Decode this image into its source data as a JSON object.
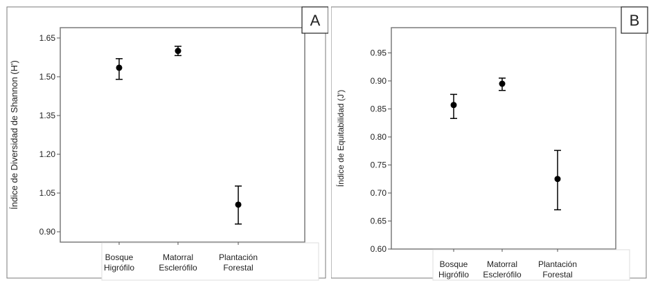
{
  "chart_data": [
    {
      "type": "scatter",
      "panel_label": "A",
      "title": "",
      "ylabel": "Índice de Diversidad de Shannon (H')",
      "xlabel": "",
      "categories": [
        [
          "Bosque",
          "Higrófilo"
        ],
        [
          "Matorral",
          "Esclerófilo"
        ],
        [
          "Plantación",
          "Forestal"
        ]
      ],
      "values": [
        1.535,
        1.6,
        1.005
      ],
      "error_low": [
        1.49,
        1.582,
        0.93
      ],
      "error_high": [
        1.57,
        1.618,
        1.077
      ],
      "yticks": [
        "0.90",
        "1.05",
        "1.20",
        "1.35",
        "1.50",
        "1.65"
      ],
      "ylim": [
        0.86,
        1.69
      ],
      "grid": false,
      "marker_color": "#000000"
    },
    {
      "type": "scatter",
      "panel_label": "B",
      "title": "",
      "ylabel": "Índice de Equitabilidad (J')",
      "xlabel": "",
      "categories": [
        [
          "Bosque",
          "Higrófilo"
        ],
        [
          "Matorral",
          "Esclerófilo"
        ],
        [
          "Plantación",
          "Forestal"
        ]
      ],
      "values": [
        0.857,
        0.895,
        0.725
      ],
      "error_low": [
        0.833,
        0.883,
        0.67
      ],
      "error_high": [
        0.876,
        0.905,
        0.776
      ],
      "yticks": [
        "0.60",
        "0.65",
        "0.70",
        "0.75",
        "0.80",
        "0.85",
        "0.90",
        "0.95"
      ],
      "ylim": [
        0.6,
        0.995
      ],
      "grid": false,
      "marker_color": "#000000"
    }
  ]
}
